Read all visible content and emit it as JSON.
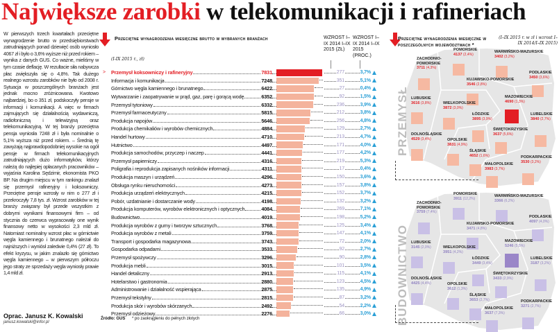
{
  "headline": {
    "red": "Największe zarobki",
    "black": " w telekomunikacji i rafineriach"
  },
  "article": {
    "text": "W pierwszych trzech kwartałach przeciętne wynagrodzenie brutto w przedsiębiorstwach zatrudniających ponad dziewięć osób wyniosło 4067 zł i było o 3,6% wyższe niż przed rokiem – wynika z danych GUS. Co ważne, mieliśmy w tym czasie deflację. W rezultacie siła nabywcza płac zwiększyła się o 4,8%. Tak dużego realnego wzrostu zarobków nie było od 2008 r. Sytuacja w poszczególnych branżach jest jednak mocno zróżnicowana. Kwotowo najbardziej, bo o 351 zł, podskoczyły pensje w informacji i komunikacji. A więc w firmach zajmujących się działalnością wydawniczą, radiofoniczną i telewizyjną oraz telekomunikacyjną. W tej branży przeciętna pensja wyniosła 7248 zł i była nominalnie o 5,1% wyższa niż przed rokiem. – Średnią tę zawyżają najprawdopodobniej wysokie na ogół pensje w firmach telekomunikacyjnych zatrudniających dużo informatyków, którzy należą do najlepiej opłacanych pracowników – wyjaśnia Karolina Sędzimir, ekonomista PKO BP. Na drugim miejscu w tym rankingu znalazł się przemysł rafineryjny i koksowniczy. Przeciętne pensje wzrosły w nim o 277 zł i przekroczyły 7,8 tys. zł. Wzrost zarobków w tej branży związany był przede wszystkim z dobrymi wynikami finansowymi firm – od stycznia do czerwca wypracowały one wynik finansowy netto w wysokości 2,3 mld zł. Natomiast nominalny wzrost płac w górnictwie węgla kamiennego i brunatnego należał do najniższych i wyniósł zaledwie 0,4% (27 zł). To efekt kryzysu, w jakim znalazło się górnictwo węgla kamiennego – w pierwszym półroczu jego straty ze sprzedaży węgla wyniosły prawie 1,4 mld zł.",
    "author": "Oprac. Janusz K. Kowalski",
    "email": "janusz.kowalski@infor.pl"
  },
  "colors": {
    "accent": "#e31e24",
    "bar": "#f4b39c",
    "growth": "#9c93c4",
    "pct": "#2a9fd6",
    "construction": "#c9c0e6",
    "construction_dark": "#9a86c8",
    "map_bg": "#e6e6e6"
  },
  "chart_data": [
    {
      "type": "table",
      "title": "Przeciętne wynagrodzenia miesięczne brutto w wybranych branżach",
      "subtitle": "(I-IX 2015 r., zł)",
      "columns": [
        "WZROST I–IX 2014 I–IX 2015 (ZŁ)",
        "WZROST I–IX 2014 I–IX 2015 (PROC.)"
      ],
      "rows": [
        {
          "name": "Przemysł koksowniczy i rafineryjny",
          "value": 7831,
          "growth": "277",
          "pct": "3,7%"
        },
        {
          "name": "Informacja i komunikacja",
          "value": 7248,
          "growth": "351",
          "pct": "5,1%"
        },
        {
          "name": "Górnictwo węgla kamiennego i brunatnego",
          "value": 6422,
          "growth": "27",
          "pct": "0,4%"
        },
        {
          "name": "Wytwarzanie i zaopatrywanie w prąd, gaz, parę i gorącą wodę",
          "value": 6352,
          "growth": "92",
          "pct": "1,5%"
        },
        {
          "name": "Przemysł tytoniowy",
          "value": 6332,
          "growth": "236",
          "pct": "3,9%"
        },
        {
          "name": "Przemysł farmaceutyczny",
          "value": 5815,
          "growth": "212",
          "pct": "3,8%"
        },
        {
          "name": "Produkcja napojów",
          "value": 5646,
          "growth": "256",
          "pct": "4,8%"
        },
        {
          "name": "Produkcja chemikaliów i wyrobów chemicznych",
          "value": 4884,
          "growth": "129",
          "pct": "2,7%"
        },
        {
          "name": "Handel hurtowy",
          "value": 4710,
          "growth": "213",
          "pct": "4,7%"
        },
        {
          "name": "Hutnictwo",
          "value": 4497,
          "growth": "171",
          "pct": "4,0%"
        },
        {
          "name": "Produkcja samochodów, przyczep i naczep",
          "value": 4441,
          "growth": "177",
          "pct": "4,2%"
        },
        {
          "name": "Przemysł papierniczy",
          "value": 4316,
          "growth": "219",
          "pct": "5,3%"
        },
        {
          "name": "Poligrafia i reprodukcja zapisanych nośników informacji",
          "value": 4311,
          "growth": "17",
          "pct": "0,4%"
        },
        {
          "name": "Produkcja maszyn i urządzeń",
          "value": 4296,
          "growth": "150",
          "pct": "3,6%"
        },
        {
          "name": "Obsługa rynku nieruchomości",
          "value": 4273,
          "growth": "157",
          "pct": "3,8%"
        },
        {
          "name": "Produkcja urządzeń elektrycznych",
          "value": 4215,
          "growth": "152",
          "pct": "3,7%"
        },
        {
          "name": "Pobór, uzdatnianie i dostarczanie wody",
          "value": 4198,
          "growth": "132",
          "pct": "3,2%"
        },
        {
          "name": "Produkcja komputerów, wyrobów elektronicznych i optycznych",
          "value": 4084,
          "growth": "269",
          "pct": "7,1%"
        },
        {
          "name": "Budownictwo",
          "value": 4019,
          "growth": "198",
          "pct": "5,2%"
        },
        {
          "name": "Produkcja wyrobów z gumy i tworzyw sztucznych",
          "value": 3768,
          "growth": "125",
          "pct": "3,4%"
        },
        {
          "name": "Produkcja wyrobów z metali",
          "value": 3759,
          "growth": "147",
          "pct": "4,1%"
        },
        {
          "name": "Transport i gospodarka magazynowa",
          "value": 3743,
          "growth": "72",
          "pct": "2,0%"
        },
        {
          "name": "Gospodarka odpadami",
          "value": 3533,
          "growth": "92",
          "pct": "2,7%"
        },
        {
          "name": "Przemysł spożywczy",
          "value": 3296,
          "growth": "90",
          "pct": "2,8%"
        },
        {
          "name": "Produkcja mebli",
          "value": 3015,
          "growth": "101",
          "pct": "3,5%"
        },
        {
          "name": "Handel detaliczny",
          "value": 2913,
          "growth": "115",
          "pct": "4,1%"
        },
        {
          "name": "Hotelarstwo i gastronomia",
          "value": 2880,
          "growth": "123",
          "pct": "4,5%"
        },
        {
          "name": "Administrowanie i działalność wspierająca",
          "value": 2875,
          "growth": "135",
          "pct": "4,9%"
        },
        {
          "name": "Przemysł tekstylny",
          "value": 2815,
          "growth": "87",
          "pct": "3,2%"
        },
        {
          "name": "Produkcja skór i wyrobów skórzanych",
          "value": 2492,
          "growth": "54",
          "pct": "2,2%"
        },
        {
          "name": "Przemysł odzieżowy",
          "value": 2276,
          "growth": "66",
          "pct": "3,0%"
        }
      ],
      "source": "Źródło: GUS",
      "footnote": "* po zaokrągleniu do pełnych złotych"
    },
    {
      "type": "map",
      "title": "Przeciętne wynagrodzenia miesięczne w poszczególnych województwach *",
      "note": "(I–IX 2015 r. w zł i wzrost I–IX 2014/I–IX 2015)",
      "panels": [
        {
          "label": "PRZEMYSŁ",
          "regions": [
            {
              "name": "ZACHODNIO-POMORSKIE",
              "value": "3711",
              "growth": "(4,3%)"
            },
            {
              "name": "POMORSKIE",
              "value": "4137",
              "growth": "(2,4%)"
            },
            {
              "name": "WARMIŃSKO-MAZURSKIE",
              "value": "3402",
              "growth": "(3,2%)"
            },
            {
              "name": "PODLASKIE",
              "value": "3450",
              "growth": "(3,6%)"
            },
            {
              "name": "KUJAWSKO-POMORSKIE",
              "value": "3546",
              "growth": "(2,8%)"
            },
            {
              "name": "LUBUSKIE",
              "value": "3616",
              "growth": "(3,8%)"
            },
            {
              "name": "WIELKOPOLSKIE",
              "value": "3872",
              "growth": "(3,0%)"
            },
            {
              "name": "MAZOWIECKIE",
              "value": "4690",
              "growth": "(1,3%)"
            },
            {
              "name": "ŁÓDZKIE",
              "value": "3895",
              "growth": "(3,9%)"
            },
            {
              "name": "LUBELSKIE",
              "value": "3840",
              "growth": "(2,7%)"
            },
            {
              "name": "ŚWIĘTOKRZYSKIE",
              "value": "3637",
              "growth": "(5,6%)"
            },
            {
              "name": "DOLNOŚLĄSKIE",
              "value": "4529",
              "growth": "(3,4%)"
            },
            {
              "name": "OPOLSKIE",
              "value": "3831",
              "growth": "(4,9%)"
            },
            {
              "name": "ŚLĄSKIE",
              "value": "4652",
              "growth": "(1,6%)"
            },
            {
              "name": "MAŁOPOLSKIE",
              "value": "3983",
              "growth": "(3,7%)"
            },
            {
              "name": "PODKARPACKIE",
              "value": "3530",
              "growth": "(3,2%)"
            }
          ]
        },
        {
          "label": "BUDOWNICTWO",
          "regions": [
            {
              "name": "ZACHODNIO-POMORSKIE",
              "value": "3759",
              "growth": "(7,4%)"
            },
            {
              "name": "POMORSKIE",
              "value": "3911",
              "growth": "(12,2%)"
            },
            {
              "name": "WARMIŃSKO-MAZURSKIE",
              "value": "3366",
              "growth": "(6,2%)"
            },
            {
              "name": "PODLASKIE",
              "value": "4097",
              "growth": "(4,0%)"
            },
            {
              "name": "KUJAWSKO-POMORSKIE",
              "value": "3471",
              "growth": "(4,8%)"
            },
            {
              "name": "LUBUSKIE",
              "value": "3145",
              "growth": "(2,0%)"
            },
            {
              "name": "WIELKOPOLSKIE",
              "value": "3951",
              "growth": "(4,2%)"
            },
            {
              "name": "MAZOWIECKIE",
              "value": "5246",
              "growth": "(5,5%)"
            },
            {
              "name": "ŁÓDZKIE",
              "value": "3449",
              "growth": "(3,4%)"
            },
            {
              "name": "LUBELSKIE",
              "value": "3187",
              "growth": "(3,2%)"
            },
            {
              "name": "ŚWIĘTOKRZYSKIE",
              "value": "3433",
              "growth": "(2,9%)"
            },
            {
              "name": "DOLNOŚLĄSKIE",
              "value": "4425",
              "growth": "(4,4%)"
            },
            {
              "name": "OPOLSKIE",
              "value": "3612",
              "growth": "(1,3%)"
            },
            {
              "name": "ŚLĄSKIE",
              "value": "3653",
              "growth": "(2,7%)"
            },
            {
              "name": "MAŁOPOLSKIE",
              "value": "3637",
              "growth": "(7,3%)"
            },
            {
              "name": "PODKARPACKIE",
              "value": "3271",
              "growth": "(2,7%)"
            }
          ]
        }
      ]
    }
  ],
  "icons": {
    "header_arrow": "red-down-arrow-icon",
    "growth_marker": "up-triangle-icon"
  }
}
